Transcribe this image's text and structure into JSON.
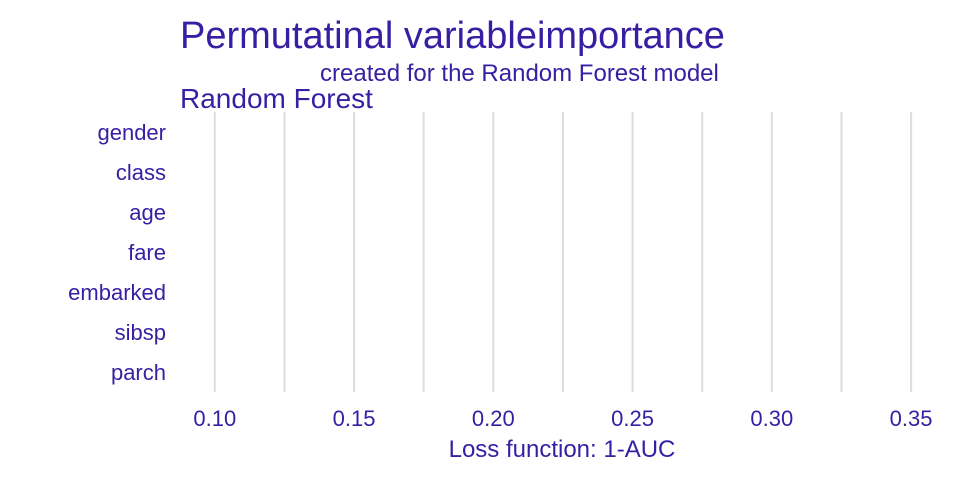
{
  "chart_data": {
    "type": "bar",
    "title": "Permutatinal variableimportance",
    "subtitle": "created for the Random Forest model",
    "panel_label": "Random Forest",
    "xlabel": "Loss function: 1-AUC",
    "ylabel": "",
    "categories": [
      "gender",
      "class",
      "age",
      "fare",
      "embarked",
      "sibsp",
      "parch"
    ],
    "x_ticks": [
      "0.10",
      "0.15",
      "0.20",
      "0.25",
      "0.30",
      "0.35"
    ],
    "xlim": [
      0.0875,
      0.355
    ],
    "grid": true,
    "legend": "none"
  },
  "colors": {
    "text": "#371ea3",
    "grid": "#dddddd",
    "background": "#ffffff"
  }
}
